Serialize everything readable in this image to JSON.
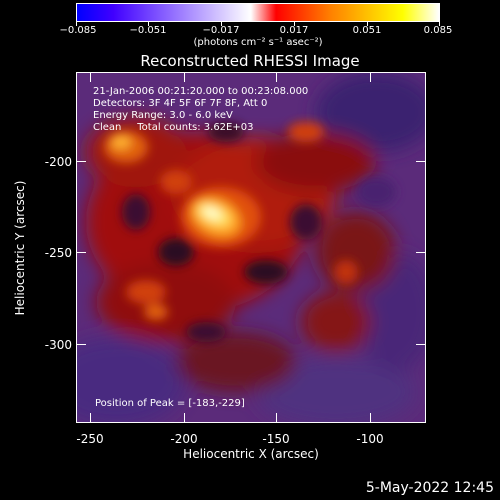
{
  "title": "Reconstructed RHESSI Image",
  "colorbar": {
    "tick_labels": [
      "−0.085",
      "−0.051",
      "−0.017",
      "0.017",
      "0.051",
      "0.085"
    ],
    "units": "(photons cm⁻² s⁻¹ asec⁻²)"
  },
  "info": {
    "time_range": "21-Jan-2006 00:21:20.000 to 00:23:08.000",
    "detectors": "Detectors: 3F 4F 5F 6F 7F 8F, Att 0",
    "energy": "Energy Range: 3.0 - 6.0 keV",
    "method": "Clean     Total counts: 3.62E+03"
  },
  "peak_text": "Position of Peak = [-183,-229]",
  "x_axis": {
    "label": "Heliocentric X (arcsec)",
    "ticks": [
      "-250",
      "-200",
      "-150",
      "-100"
    ]
  },
  "y_axis": {
    "label": "Heliocentric Y (arcsec)",
    "ticks": [
      "-200",
      "-250",
      "-300"
    ]
  },
  "timestamp": "5-May-2022 12:45"
}
